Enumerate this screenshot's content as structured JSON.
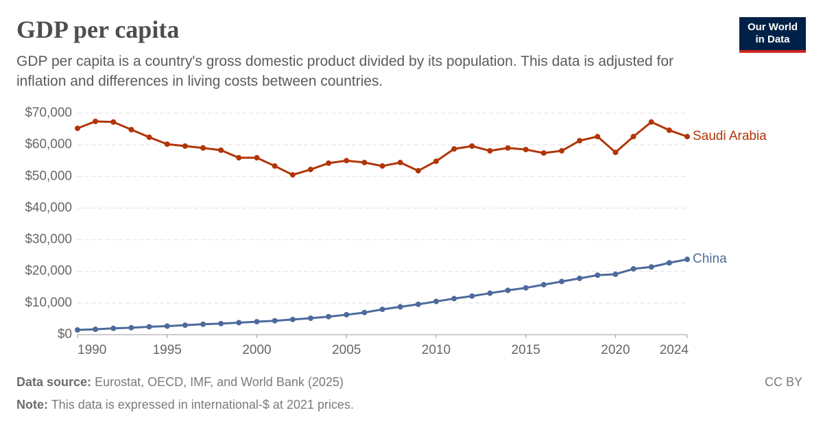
{
  "header": {
    "title": "GDP per capita",
    "subtitle": "GDP per capita is a country's gross domestic product divided by its population. This data is adjusted for inflation and differences in living costs between countries.",
    "logo": [
      "Our World",
      "in Data"
    ]
  },
  "chart_data": {
    "type": "line",
    "x": [
      1990,
      1991,
      1992,
      1993,
      1994,
      1995,
      1996,
      1997,
      1998,
      1999,
      2000,
      2001,
      2002,
      2003,
      2004,
      2005,
      2006,
      2007,
      2008,
      2009,
      2010,
      2011,
      2012,
      2013,
      2014,
      2015,
      2016,
      2017,
      2018,
      2019,
      2020,
      2021,
      2022,
      2023,
      2024
    ],
    "series": [
      {
        "name": "Saudi Arabia",
        "color": "#b13507",
        "values": [
          65200,
          67400,
          67200,
          64800,
          62400,
          60200,
          59600,
          59000,
          58300,
          55900,
          55900,
          53300,
          50500,
          52200,
          54200,
          55000,
          54400,
          53300,
          54400,
          51800,
          54800,
          58700,
          59600,
          58100,
          59000,
          58500,
          57400,
          58100,
          61300,
          62600,
          57600,
          62600,
          67200,
          64600,
          62600
        ]
      },
      {
        "name": "China",
        "color": "#4c6a9c",
        "values": [
          1500,
          1700,
          2000,
          2200,
          2500,
          2700,
          3000,
          3300,
          3500,
          3800,
          4100,
          4400,
          4800,
          5200,
          5700,
          6300,
          7000,
          8000,
          8800,
          9600,
          10500,
          11400,
          12200,
          13100,
          14000,
          14800,
          15800,
          16800,
          17800,
          18800,
          19100,
          20800,
          21400,
          22700,
          23800
        ]
      }
    ],
    "xlim": [
      1990,
      2024
    ],
    "xticks": [
      1990,
      1995,
      2000,
      2005,
      2010,
      2015,
      2020,
      2024
    ],
    "ylim": [
      0,
      70000
    ],
    "yticks": [
      {
        "value": 0,
        "label": "$0"
      },
      {
        "value": 10000,
        "label": "$10,000"
      },
      {
        "value": 20000,
        "label": "$20,000"
      },
      {
        "value": 30000,
        "label": "$30,000"
      },
      {
        "value": 40000,
        "label": "$40,000"
      },
      {
        "value": 50000,
        "label": "$50,000"
      },
      {
        "value": 60000,
        "label": "$60,000"
      },
      {
        "value": 70000,
        "label": "$70,000"
      }
    ],
    "grid": true
  },
  "footer": {
    "source_label": "Data source:",
    "source": "Eurostat, OECD, IMF, and World Bank (2025)",
    "note_label": "Note:",
    "note": "This data is expressed in international-$ at 2021 prices.",
    "license": "CC BY"
  }
}
